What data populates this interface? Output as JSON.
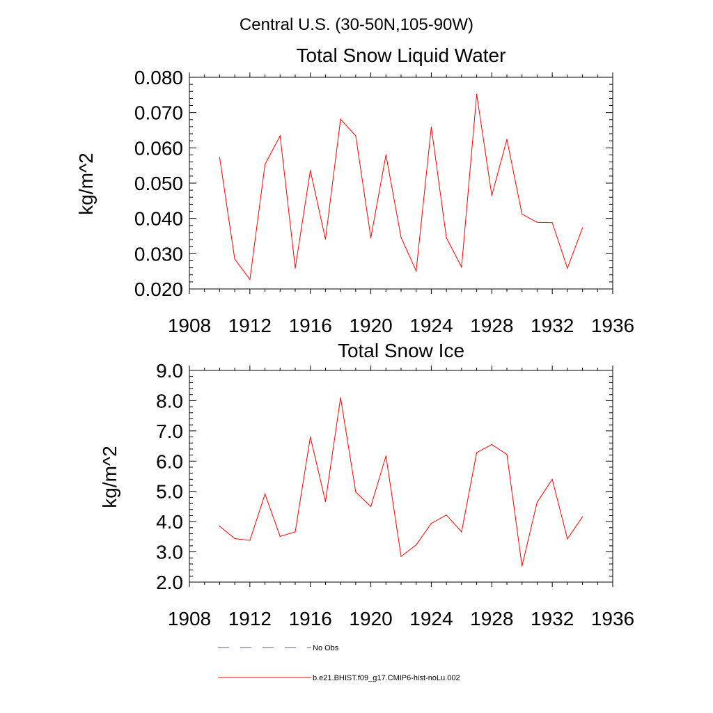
{
  "figure": {
    "title": "Central U.S. (30-50N,105-90W)"
  },
  "chart_data": [
    {
      "type": "line",
      "title": "Total Snow Liquid Water",
      "xlabel": "",
      "ylabel": "kg/m^2",
      "xlim": [
        1908,
        1936
      ],
      "ylim": [
        0.02,
        0.08
      ],
      "xticks": [
        "1908",
        "1912",
        "1916",
        "1920",
        "1924",
        "1928",
        "1932",
        "1936"
      ],
      "yticks": [
        "0.020",
        "0.030",
        "0.040",
        "0.050",
        "0.060",
        "0.070",
        "0.080"
      ],
      "grid": false,
      "x": [
        1910,
        1911,
        1912,
        1913,
        1914,
        1915,
        1916,
        1917,
        1918,
        1919,
        1920,
        1921,
        1922,
        1923,
        1924,
        1925,
        1926,
        1927,
        1928,
        1929,
        1930,
        1931,
        1932,
        1933,
        1934
      ],
      "series": [
        {
          "name": "b.e21.BHIST.f09_g17.CMIP6-hist-noLu.002",
          "color": "#ff0000",
          "values": [
            0.0573,
            0.0285,
            0.0227,
            0.0553,
            0.0634,
            0.0259,
            0.0536,
            0.0341,
            0.0681,
            0.0634,
            0.0345,
            0.058,
            0.0346,
            0.0251,
            0.0659,
            0.0345,
            0.0262,
            0.0752,
            0.0465,
            0.0624,
            0.0412,
            0.0389,
            0.0388,
            0.0259,
            0.0373
          ]
        }
      ]
    },
    {
      "type": "line",
      "title": "Total Snow Ice",
      "xlabel": "",
      "ylabel": "kg/m^2",
      "xlim": [
        1908,
        1936
      ],
      "ylim": [
        2.0,
        9.0
      ],
      "xticks": [
        "1908",
        "1912",
        "1916",
        "1920",
        "1924",
        "1928",
        "1932",
        "1936"
      ],
      "yticks": [
        "2.0",
        "3.0",
        "4.0",
        "5.0",
        "6.0",
        "7.0",
        "8.0",
        "9.0"
      ],
      "grid": false,
      "x": [
        1910,
        1911,
        1912,
        1913,
        1914,
        1915,
        1916,
        1917,
        1918,
        1919,
        1920,
        1921,
        1922,
        1923,
        1924,
        1925,
        1926,
        1927,
        1928,
        1929,
        1930,
        1931,
        1932,
        1933,
        1934
      ],
      "series": [
        {
          "name": "b.e21.BHIST.f09_g17.CMIP6-hist-noLu.002",
          "color": "#ff0000",
          "values": [
            3.85,
            3.44,
            3.38,
            4.91,
            3.51,
            3.66,
            6.8,
            4.66,
            8.1,
            4.98,
            4.5,
            6.17,
            2.85,
            3.23,
            3.94,
            4.22,
            3.66,
            6.28,
            6.55,
            6.22,
            2.53,
            4.64,
            5.4,
            3.43,
            4.16
          ]
        }
      ]
    }
  ],
  "legend": {
    "position": "bottom",
    "items": [
      {
        "label": "No Obs",
        "color": "#5a5a8a",
        "style": "dashed"
      },
      {
        "label": "b.e21.BHIST.f09_g17.CMIP6-hist-noLu.002",
        "color": "#ff0000",
        "style": "solid"
      }
    ]
  }
}
